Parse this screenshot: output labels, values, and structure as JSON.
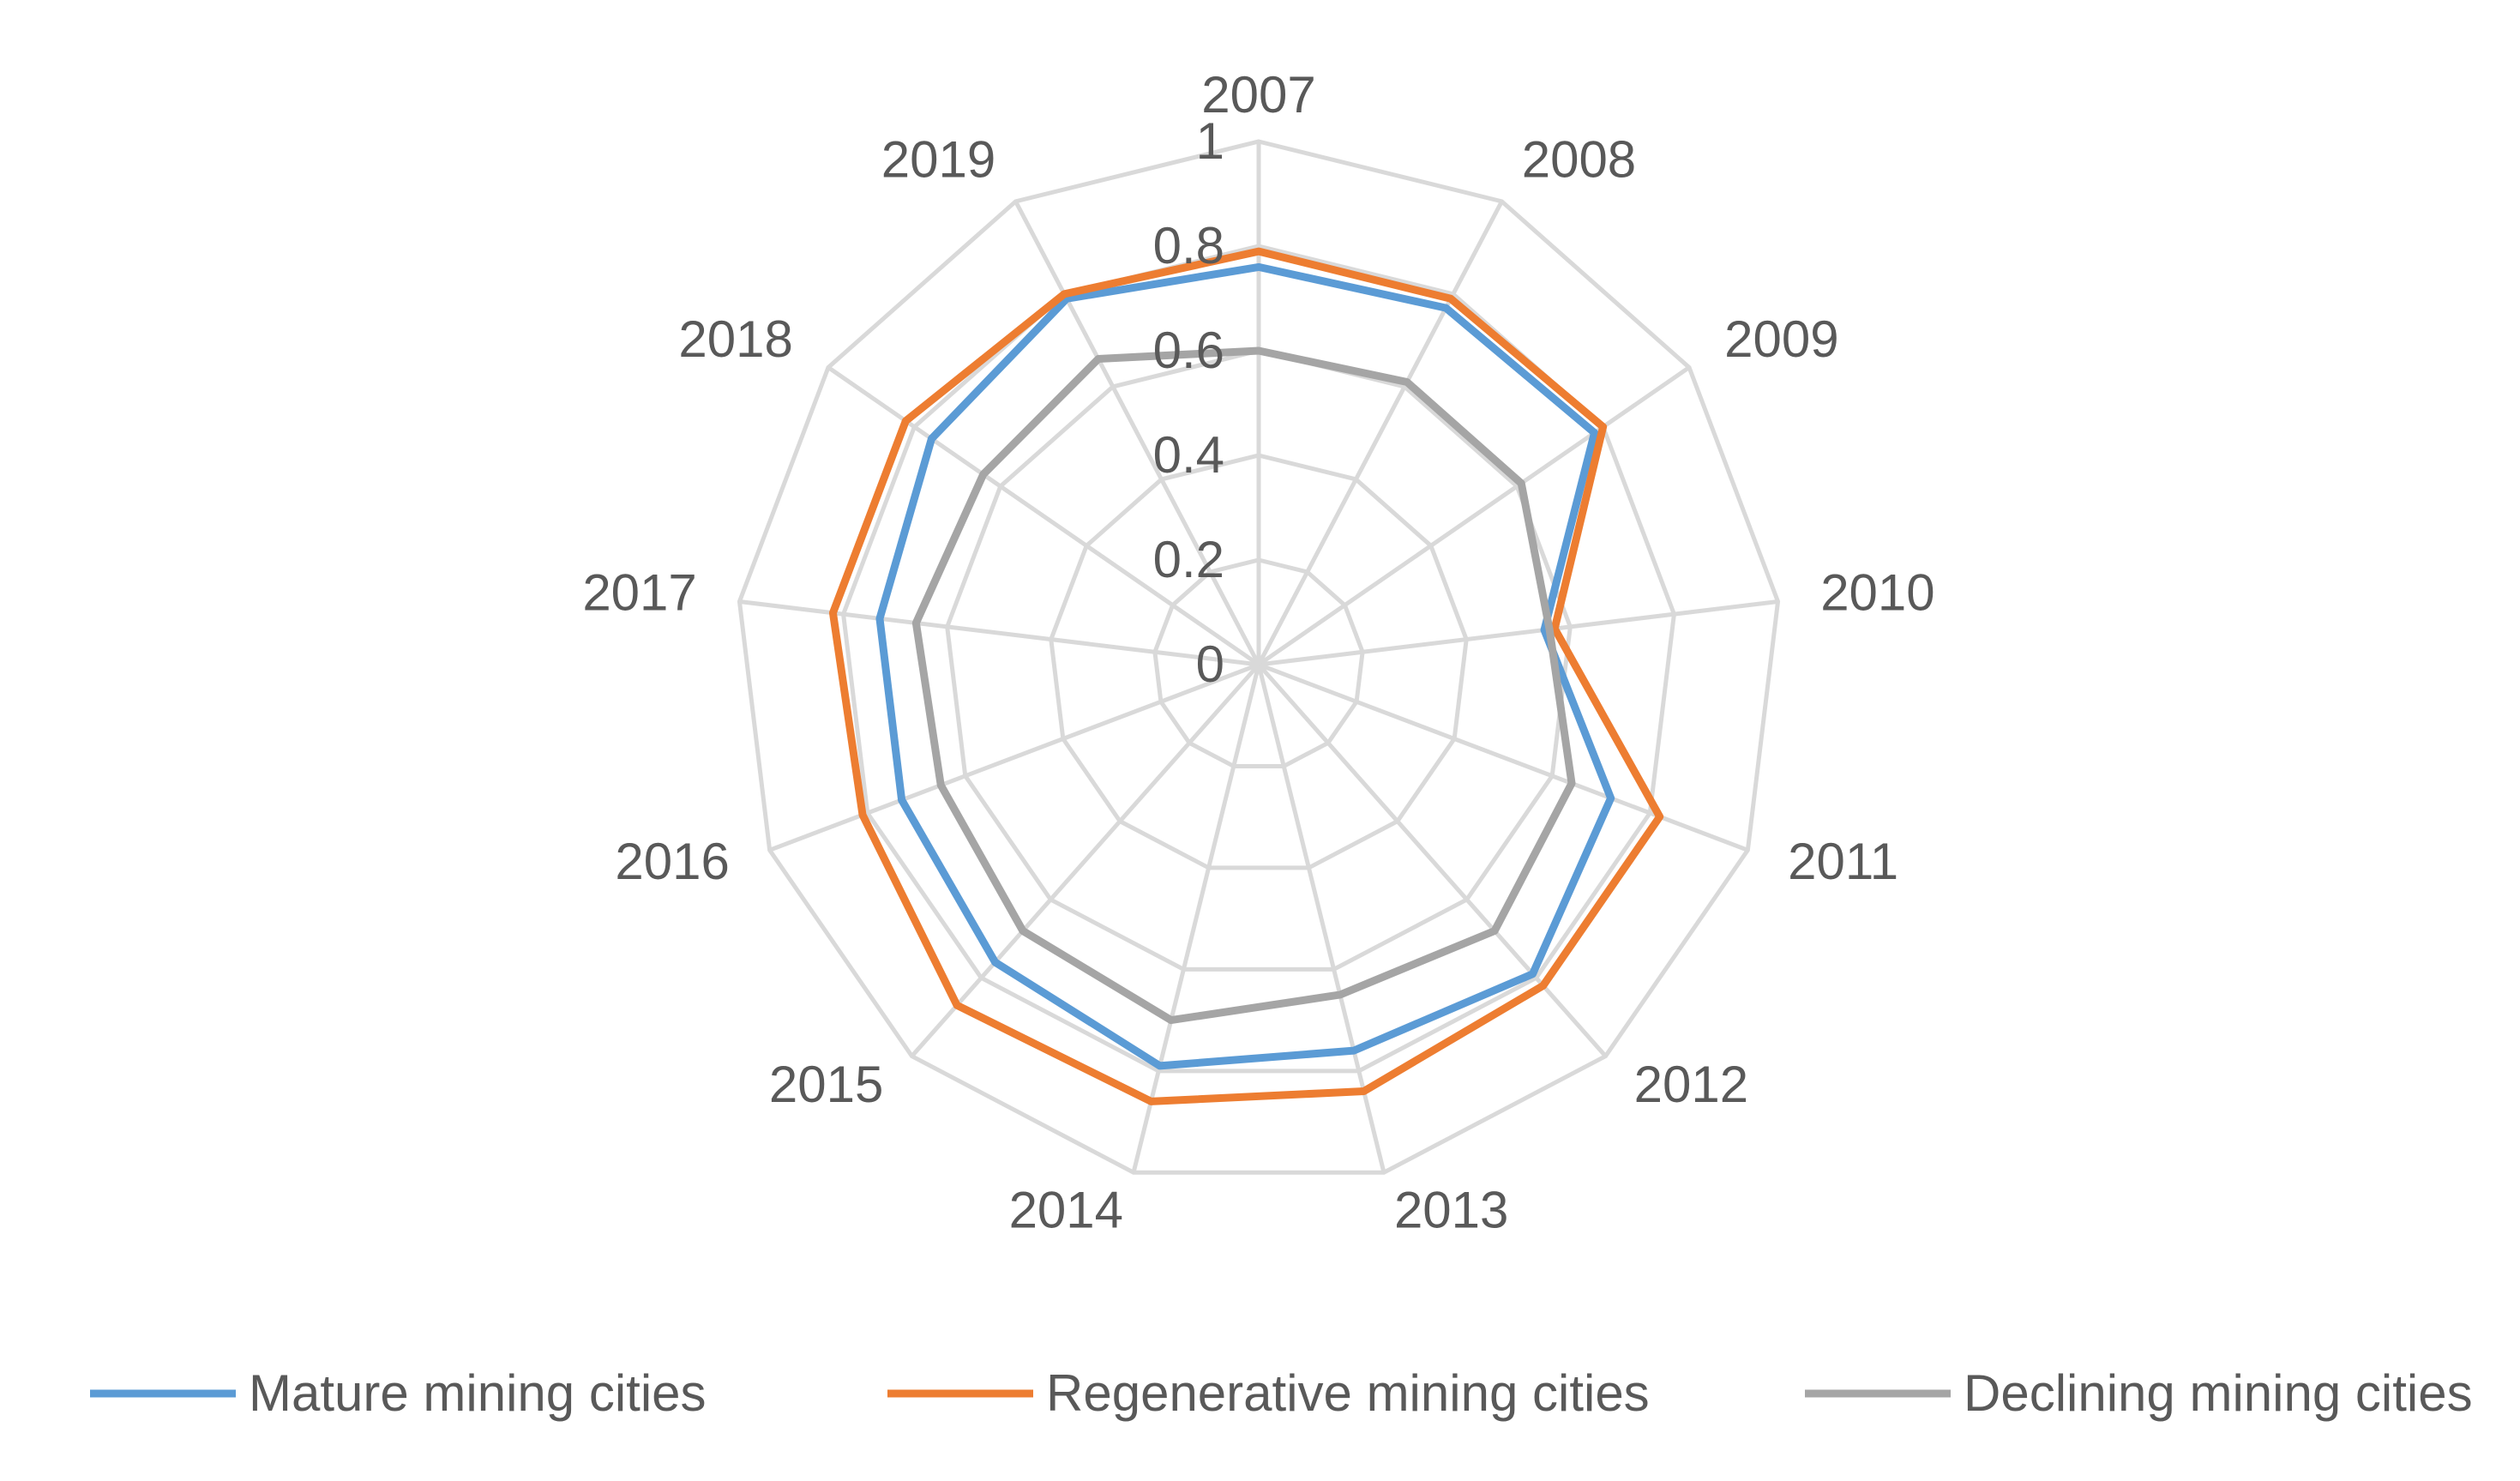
{
  "chart_data": {
    "type": "radar",
    "categories": [
      "2007",
      "2008",
      "2009",
      "2010",
      "2011",
      "2012",
      "2013",
      "2014",
      "2015",
      "2016",
      "2017",
      "2018",
      "2019"
    ],
    "r_ticks": [
      "0",
      "0.2",
      "0.4",
      "0.6",
      "0.8",
      "1"
    ],
    "rlim": [
      0,
      1
    ],
    "grid": true,
    "legend_position": "bottom",
    "series": [
      {
        "name": "Mature mining cities",
        "color": "#5B9BD5",
        "values": [
          0.76,
          0.77,
          0.78,
          0.55,
          0.72,
          0.79,
          0.76,
          0.79,
          0.76,
          0.73,
          0.73,
          0.76,
          0.79
        ]
      },
      {
        "name": "Regenerative mining cities",
        "color": "#ED7D31",
        "values": [
          0.79,
          0.79,
          0.8,
          0.57,
          0.82,
          0.82,
          0.84,
          0.86,
          0.87,
          0.81,
          0.82,
          0.82,
          0.8
        ]
      },
      {
        "name": "Declining mining cities",
        "color": "#A5A5A5",
        "values": [
          0.6,
          0.61,
          0.61,
          0.56,
          0.64,
          0.68,
          0.65,
          0.7,
          0.68,
          0.65,
          0.66,
          0.64,
          0.66
        ]
      }
    ]
  }
}
